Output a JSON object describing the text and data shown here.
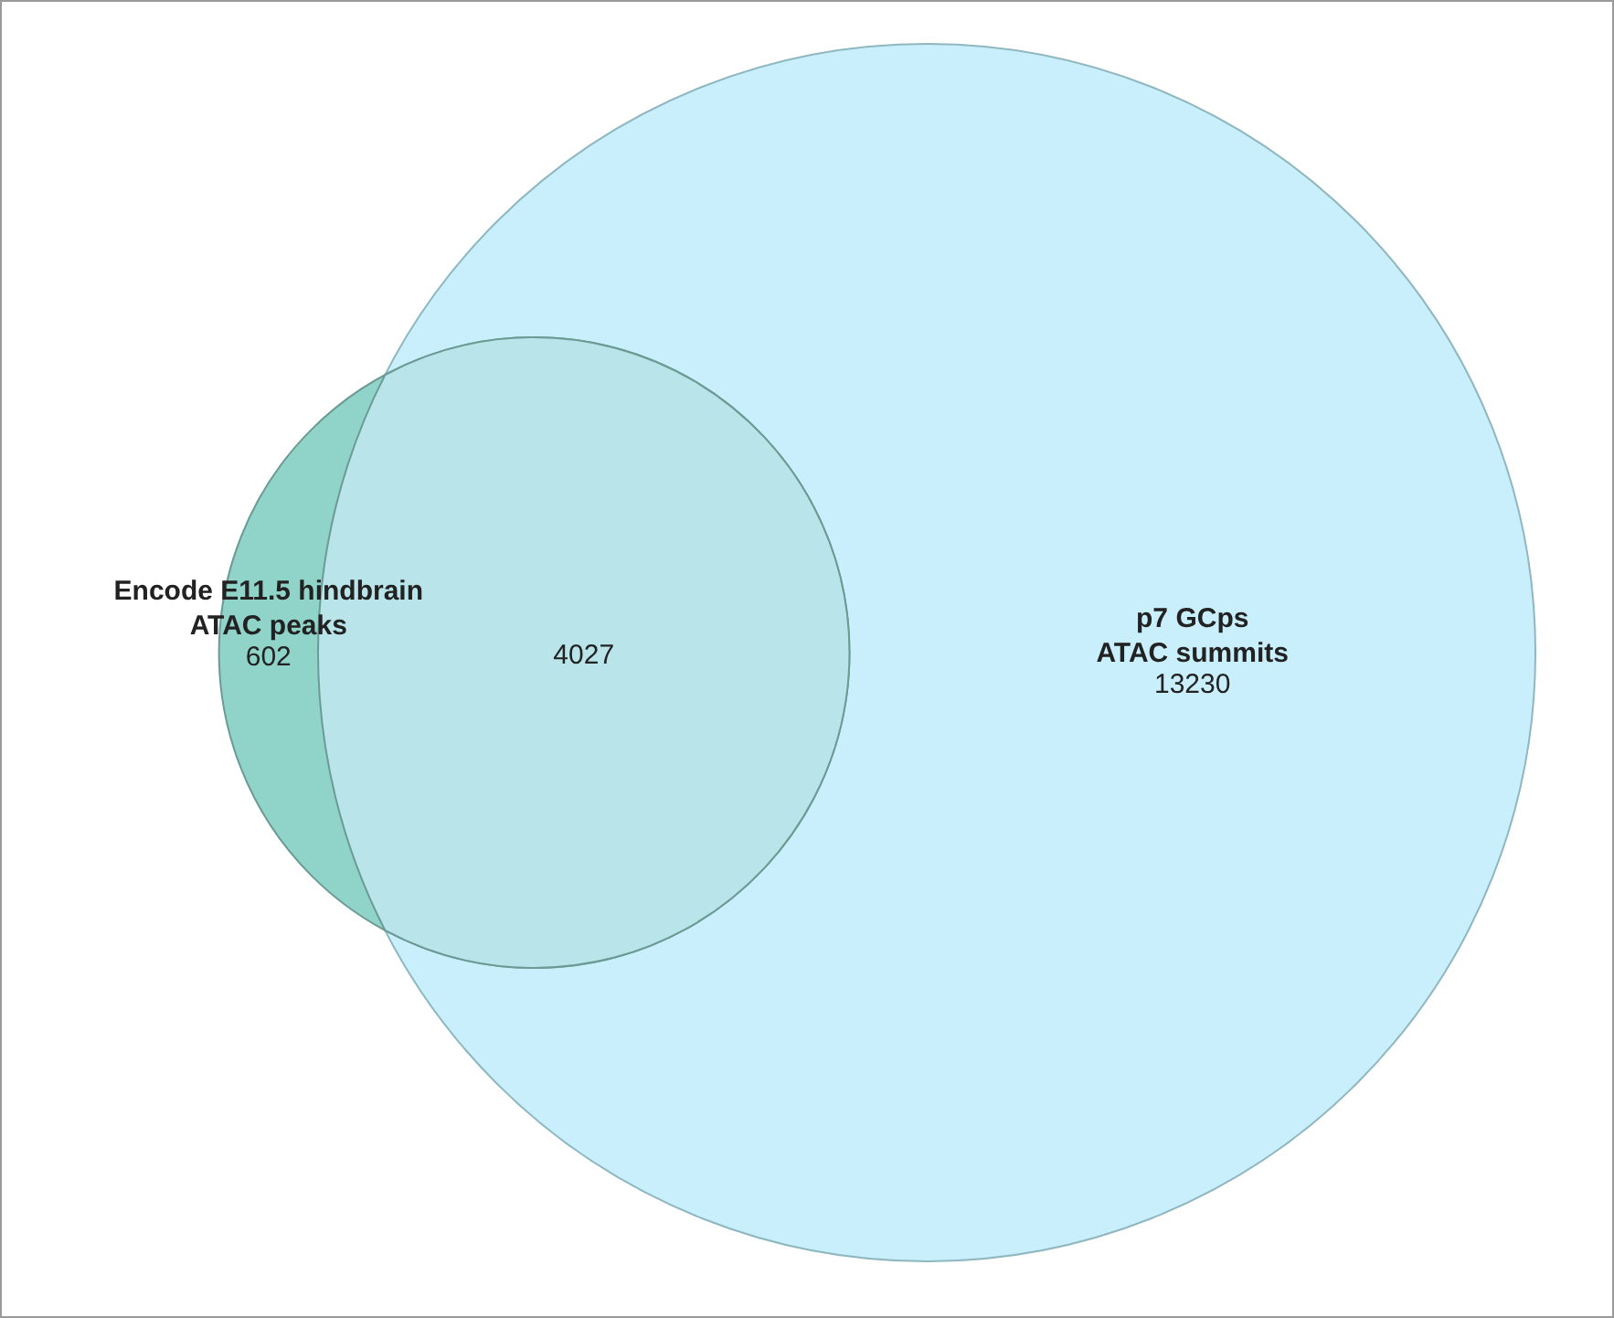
{
  "chart_data": {
    "type": "other",
    "categories": [
      "Encode E11.5 hindbrain\nATAC peaks",
      null,
      "p7 GCps\nATAC summits"
    ],
    "values": [
      602,
      4027,
      13230
    ],
    "colors": [
      "#8fd3c9",
      "#b9e5ea",
      "#c8effb"
    ],
    "data_labels": true
  }
}
